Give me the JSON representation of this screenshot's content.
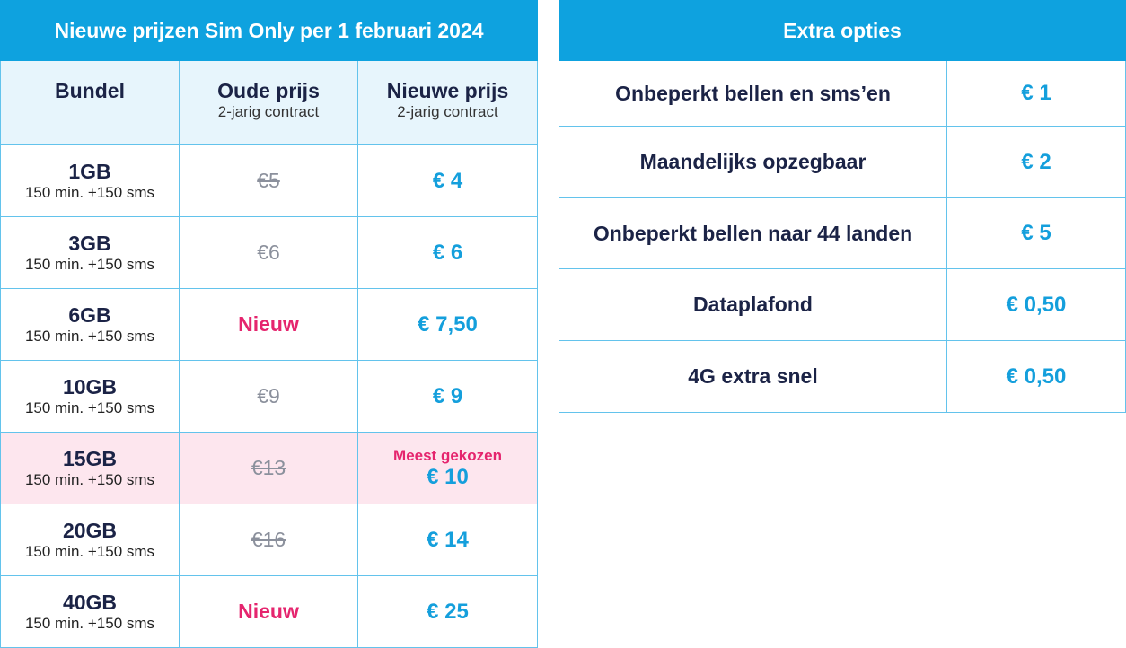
{
  "left": {
    "title": "Nieuwe prijzen Sim Only per 1 februari 2024",
    "headers": [
      {
        "title": "Bundel"
      },
      {
        "title": "Oude prijs",
        "subtitle": "2-jarig contract"
      },
      {
        "title": "Nieuwe prijs",
        "subtitle": "2-jarig contract"
      }
    ],
    "rows": [
      {
        "bundle": "1GB",
        "details": "150 min. +150 sms",
        "old": "€5",
        "new": "€ 4"
      },
      {
        "bundle": "3GB",
        "details": "150 min. +150 sms",
        "old": "€6",
        "new": "€ 6"
      },
      {
        "bundle": "6GB",
        "details": "150 min. +150 sms",
        "old": "Nieuw",
        "new": "€ 7,50"
      },
      {
        "bundle": "10GB",
        "details": "150 min. +150 sms",
        "old": "€9",
        "new": "€ 9"
      },
      {
        "bundle": "15GB",
        "details": "150 min. +150 sms",
        "old": "€13",
        "badge": "Meest gekozen",
        "new": "€ 10"
      },
      {
        "bundle": "20GB",
        "details": "150 min. +150 sms",
        "old": "€16",
        "new": "€ 14"
      },
      {
        "bundle": "40GB",
        "details": "150 min. +150 sms",
        "old": "Nieuw",
        "new": "€ 25"
      }
    ]
  },
  "right": {
    "title": "Extra opties",
    "rows": [
      {
        "option": "Onbeperkt bellen en sms’en",
        "price": "€ 1"
      },
      {
        "option": "Maandelijks opzegbaar",
        "price": "€ 2"
      },
      {
        "option": "Onbeperkt bellen naar 44 landen",
        "price": "€ 5"
      },
      {
        "option": "Dataplafond",
        "price": "€ 0,50"
      },
      {
        "option": "4G extra snel",
        "price": "€ 0,50"
      }
    ]
  }
}
